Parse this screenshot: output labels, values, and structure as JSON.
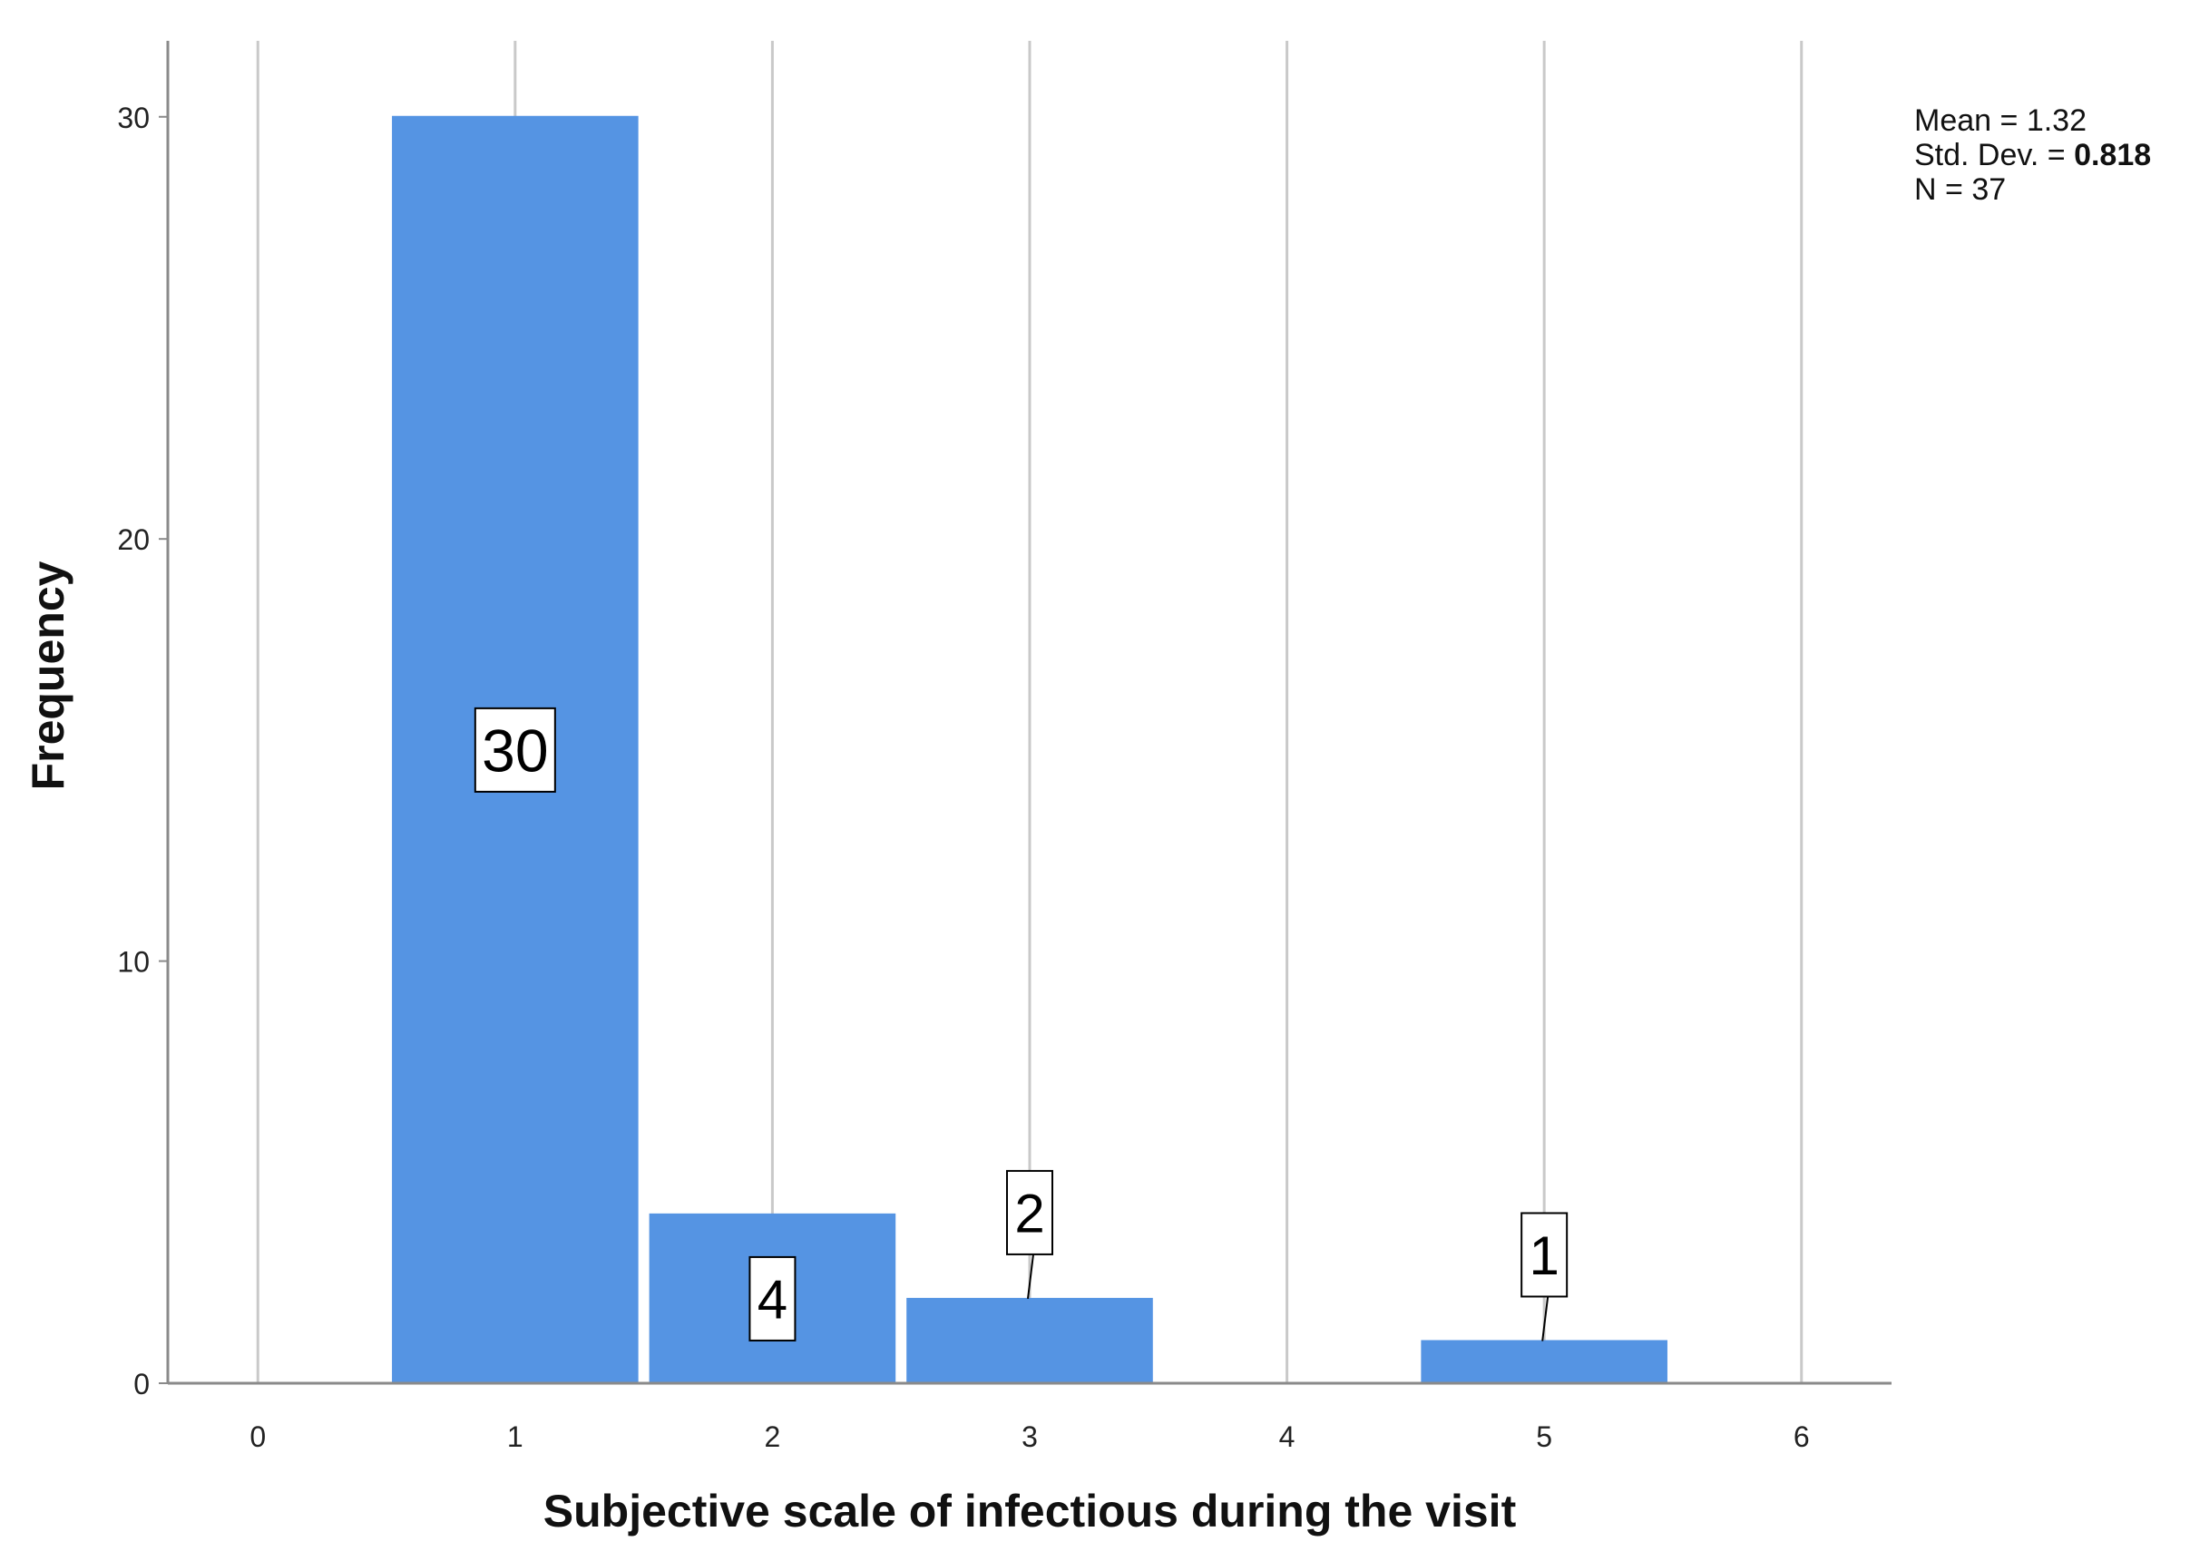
{
  "chart_data": {
    "type": "bar",
    "xlabel": "Subjective scale of infectious during the visit",
    "ylabel": "Frequency",
    "x_ticks": [
      "0",
      "1",
      "2",
      "3",
      "4",
      "5",
      "6"
    ],
    "y_ticks": [
      "0",
      "10",
      "20",
      "30"
    ],
    "xlim": [
      -0.35,
      6.35
    ],
    "ylim": [
      0,
      31.8
    ],
    "grid": "vertical",
    "bar_color": "#5594e3",
    "bins": [
      {
        "x": 1,
        "value": 30,
        "label": "30"
      },
      {
        "x": 2,
        "value": 4,
        "label": "4"
      },
      {
        "x": 3,
        "value": 2,
        "label": "2"
      },
      {
        "x": 5,
        "value": 1,
        "label": "1"
      }
    ],
    "stats": {
      "mean_label": "Mean = ",
      "mean_value": "1.32",
      "std_label": "Std. Dev. = ",
      "std_value": "0.818",
      "n_label": "N = ",
      "n_value": "37"
    }
  }
}
